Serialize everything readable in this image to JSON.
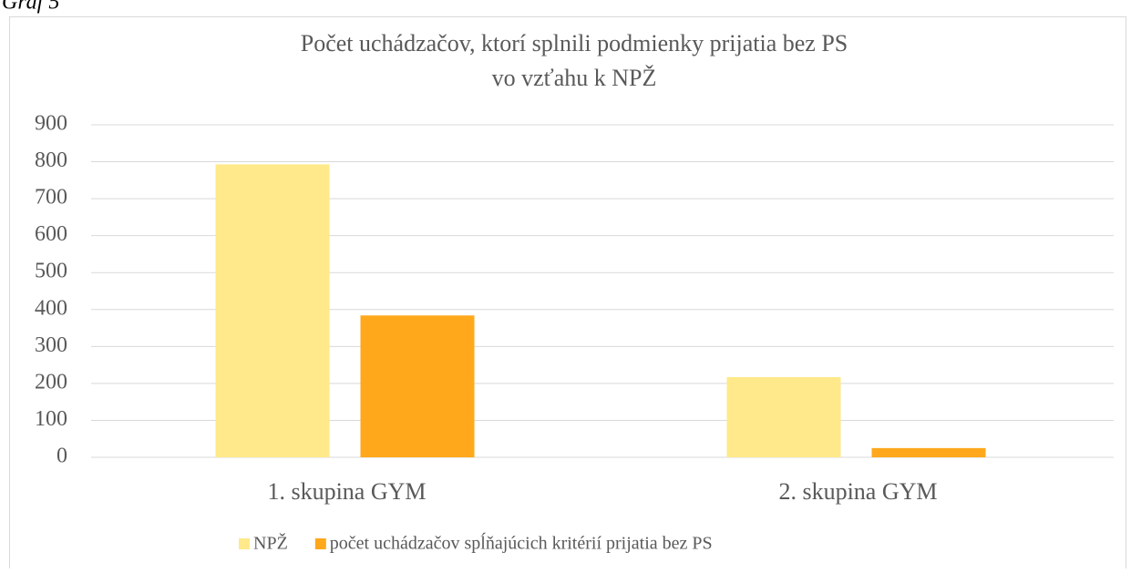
{
  "caption": "Graf 5",
  "chart_data": {
    "type": "bar",
    "title": [
      "Počet uchádzačov, ktorí splnili podmienky prijatia bez PS",
      "vo vzťahu k NPŽ"
    ],
    "categories": [
      "1. skupina GYM",
      "2. skupina GYM"
    ],
    "series": [
      {
        "name": "NPŽ",
        "color": "#ffe98a",
        "values": [
          793,
          217
        ]
      },
      {
        "name": "počet uchádzačov spĺňajúcich kritérií prijatia bez PS",
        "color": "#ffa81c",
        "values": [
          384,
          25
        ]
      }
    ],
    "ylim": [
      0,
      900
    ],
    "yticks": [
      0,
      100,
      200,
      300,
      400,
      500,
      600,
      700,
      800,
      900
    ],
    "grid": true,
    "legend": "bottom"
  }
}
